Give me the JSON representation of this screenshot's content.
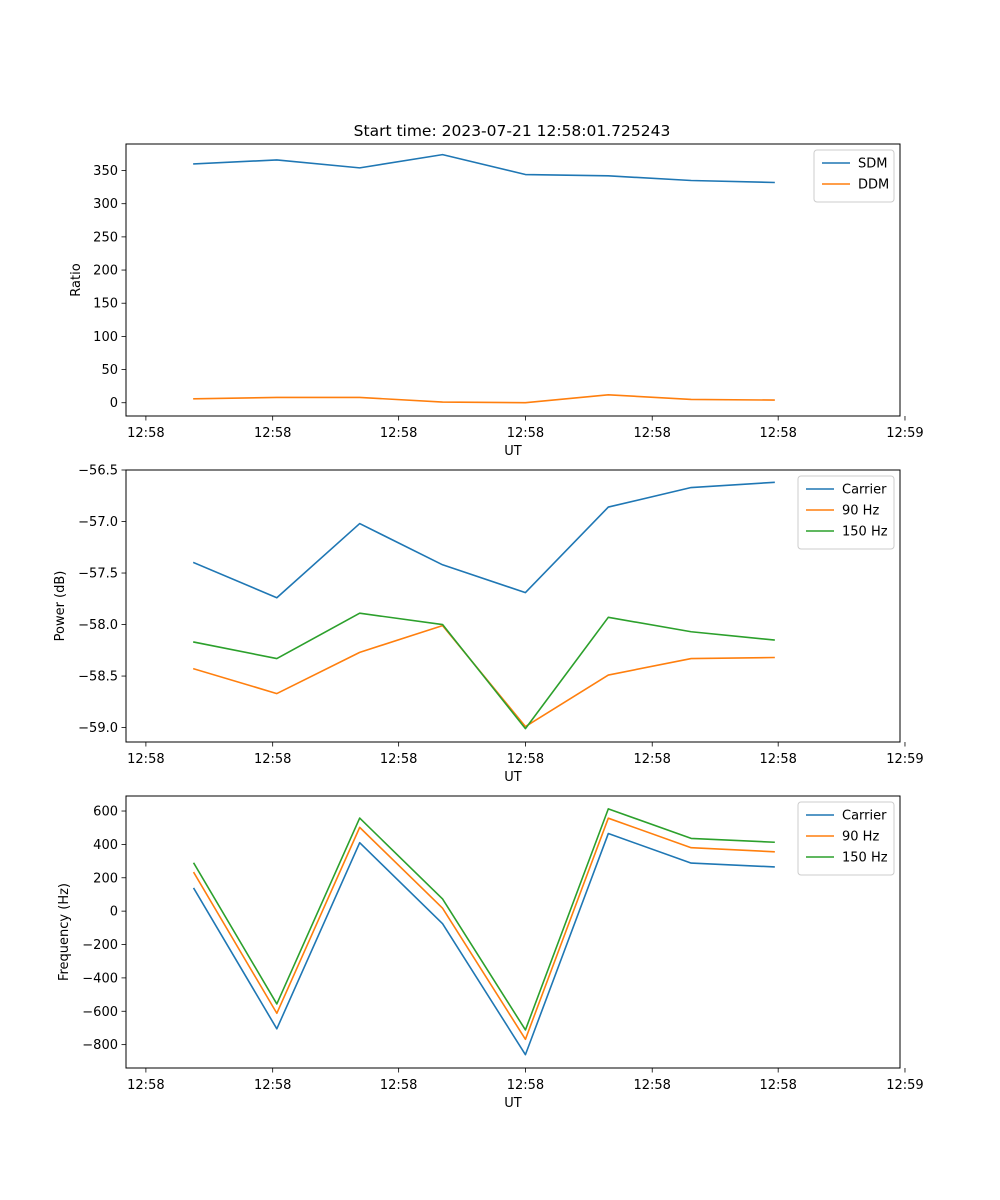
{
  "title": "Start time: 2023-07-21 12:58:01.725243",
  "colors": {
    "blue": "#1f77b4",
    "orange": "#ff7f0e",
    "green": "#2ca02c"
  },
  "chart_data": [
    {
      "type": "line",
      "title": "Start time: 2023-07-21 12:58:01.725243",
      "xlabel": "UT",
      "ylabel": "Ratio",
      "x": [
        1,
        2,
        3,
        4,
        5,
        6,
        7,
        8
      ],
      "xlim": [
        0.18,
        9.52
      ],
      "x_ticks": [
        0.42,
        1.95,
        3.47,
        5.0,
        6.53,
        8.05,
        9.58
      ],
      "x_tick_labels": [
        "12:58",
        "12:58",
        "12:58",
        "12:58",
        "12:58",
        "12:58",
        "12:59"
      ],
      "ylim": [
        -20,
        390
      ],
      "y_ticks": [
        0,
        50,
        100,
        150,
        200,
        250,
        300,
        350
      ],
      "y_tick_labels": [
        "0",
        "50",
        "100",
        "150",
        "200",
        "250",
        "300",
        "350"
      ],
      "legend_position": "upper-right",
      "series": [
        {
          "name": "SDM",
          "color": "#1f77b4",
          "values": [
            360,
            366,
            354,
            374,
            344,
            342,
            335,
            332
          ]
        },
        {
          "name": "DDM",
          "color": "#ff7f0e",
          "values": [
            6,
            8,
            8,
            1,
            0,
            12,
            5,
            4
          ]
        }
      ]
    },
    {
      "type": "line",
      "title": "",
      "xlabel": "UT",
      "ylabel": "Power (dB)",
      "x": [
        1,
        2,
        3,
        4,
        5,
        6,
        7,
        8
      ],
      "xlim": [
        0.18,
        9.52
      ],
      "x_ticks": [
        0.42,
        1.95,
        3.47,
        5.0,
        6.53,
        8.05,
        9.58
      ],
      "x_tick_labels": [
        "12:58",
        "12:58",
        "12:58",
        "12:58",
        "12:58",
        "12:58",
        "12:59"
      ],
      "ylim": [
        -59.14,
        -56.5
      ],
      "y_ticks": [
        -59.0,
        -58.5,
        -58.0,
        -57.5,
        -57.0,
        -56.5
      ],
      "y_tick_labels": [
        "−59.0",
        "−58.5",
        "−58.0",
        "−57.5",
        "−57.0",
        "−56.5"
      ],
      "legend_position": "upper-right",
      "series": [
        {
          "name": "Carrier",
          "color": "#1f77b4",
          "values": [
            -57.4,
            -57.74,
            -57.02,
            -57.42,
            -57.69,
            -56.86,
            -56.67,
            -56.62
          ]
        },
        {
          "name": "90 Hz",
          "color": "#ff7f0e",
          "values": [
            -58.43,
            -58.67,
            -58.27,
            -58.01,
            -58.99,
            -58.49,
            -58.33,
            -58.32
          ]
        },
        {
          "name": "150 Hz",
          "color": "#2ca02c",
          "values": [
            -58.17,
            -58.33,
            -57.89,
            -58.0,
            -59.01,
            -57.93,
            -58.07,
            -58.15
          ]
        }
      ]
    },
    {
      "type": "line",
      "title": "",
      "xlabel": "UT",
      "ylabel": "Frequency (Hz)",
      "x": [
        1,
        2,
        3,
        4,
        5,
        6,
        7,
        8
      ],
      "xlim": [
        0.18,
        9.52
      ],
      "x_ticks": [
        0.42,
        1.95,
        3.47,
        5.0,
        6.53,
        8.05,
        9.58
      ],
      "x_tick_labels": [
        "12:58",
        "12:58",
        "12:58",
        "12:58",
        "12:58",
        "12:58",
        "12:59"
      ],
      "ylim": [
        -940,
        690
      ],
      "y_ticks": [
        -800,
        -600,
        -400,
        -200,
        0,
        200,
        400,
        600
      ],
      "y_tick_labels": [
        "−800",
        "−600",
        "−400",
        "−200",
        "0",
        "200",
        "400",
        "600"
      ],
      "legend_position": "upper-right",
      "series": [
        {
          "name": "Carrier",
          "color": "#1f77b4",
          "values": [
            135,
            -705,
            410,
            -75,
            -860,
            465,
            288,
            265
          ]
        },
        {
          "name": "90 Hz",
          "color": "#ff7f0e",
          "values": [
            230,
            -612,
            502,
            18,
            -768,
            557,
            380,
            356
          ]
        },
        {
          "name": "150 Hz",
          "color": "#2ca02c",
          "values": [
            286,
            -556,
            558,
            73,
            -712,
            613,
            436,
            413
          ]
        }
      ]
    }
  ]
}
